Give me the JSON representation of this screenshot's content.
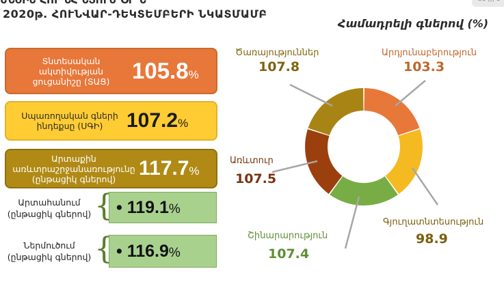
{
  "header": {
    "top_cut": "ԵՆՇԻԵ ՀՈՒ ՆՀ ՆՅՈՒՄ ՕՐ Ն",
    "subtitle": "2020թ. ՀՈՒՆՎԱՐ-ԴԵԿՏԵՄԲԵՐԻ ՆԿԱՏՄԱՄԲ",
    "units": "Համադրելի գներով (%)",
    "corner": "«« ... »"
  },
  "indicators": [
    {
      "label": "Տնտեսական ակտիվության ցուցանիշը (ՏԱՑ)",
      "value": "105.8",
      "unit": "%",
      "color": "#e8773a"
    },
    {
      "label": "Սպառողական գների ինդեքսը (ՍԳԻ)",
      "value": "107.2",
      "unit": "%",
      "color": "#ffcc33"
    },
    {
      "label": "Արտաքին առևտրաշրջանառությունը (ընթացիկ գներով)",
      "value": "117.7",
      "unit": "%",
      "color": "#b08a15"
    }
  ],
  "trade": [
    {
      "label": "Արտահանում (ընթացիկ գներով)",
      "bullet": "•",
      "value": "119.1",
      "unit": "%"
    },
    {
      "label": "Ներմուծում (ընթացիկ գներով)",
      "bullet": "•",
      "value": "116.9",
      "unit": "%"
    }
  ],
  "chart_data": {
    "type": "pie",
    "title": "",
    "unit": "Համադրելի գներով (%)",
    "categories": [
      "Արդյունաբերություն",
      "Գյուղատնտեսություն",
      "Շինարարություն",
      "Առևտուր",
      "Ծառայություններ"
    ],
    "values": [
      103.3,
      98.9,
      107.4,
      107.5,
      107.8
    ],
    "value_labels": [
      "103.3",
      "98.9",
      "107.4",
      "107.5",
      "107.8"
    ],
    "colors": [
      "#e8773a",
      "#f5b921",
      "#78ad45",
      "#9c3f0e",
      "#a88414"
    ],
    "label_colors": [
      "#c0662a",
      "#7a5f0c",
      "#5f8f34",
      "#7a3410",
      "#7f640e"
    ],
    "donut": true
  }
}
